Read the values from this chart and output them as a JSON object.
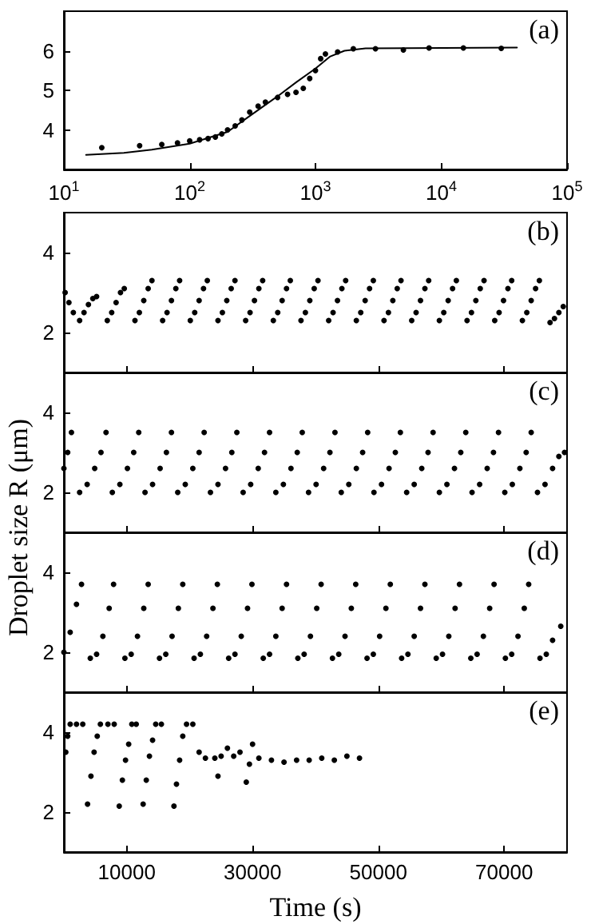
{
  "chart_data": [
    {
      "type": "scatter",
      "annotations": [
        "(a)"
      ],
      "xlim": [
        10,
        100000
      ],
      "log": "x",
      "xticks": [
        {
          "value": 10,
          "label": "10$^{1}$"
        },
        {
          "value": 100,
          "label": "10$^{2}$"
        },
        {
          "value": 1000,
          "label": "10$^{3}$"
        },
        {
          "value": 10000,
          "label": "10$^{4}$"
        },
        {
          "value": 100000,
          "label": "10$^{5}$"
        }
      ],
      "ylim": [
        3,
        7
      ],
      "yticks": [
        4,
        5,
        6
      ],
      "marker": "circle",
      "series": [
        {
          "color": "#000000",
          "x": [
            20,
            40,
            60,
            80,
            100,
            120,
            140,
            160,
            180,
            200,
            230,
            260,
            300,
            350,
            400,
            500,
            600,
            700,
            800,
            900,
            1000,
            1100,
            1200,
            1500,
            2000,
            3000,
            5000,
            8000,
            15000,
            30000
          ],
          "values": [
            3.55,
            3.6,
            3.63,
            3.67,
            3.72,
            3.75,
            3.78,
            3.82,
            3.9,
            4.0,
            4.1,
            4.25,
            4.45,
            4.6,
            4.7,
            4.82,
            4.9,
            4.95,
            5.05,
            5.3,
            5.5,
            5.8,
            5.92,
            5.97,
            6.05,
            6.05,
            6.02,
            6.07,
            6.07,
            6.06
          ]
        },
        {
          "type": "line",
          "marker": "none",
          "color": "#000000",
          "x": [
            15,
            30,
            50,
            100,
            200,
            300,
            500,
            700,
            1000,
            1300,
            1700,
            2500,
            40000
          ],
          "values": [
            3.37,
            3.42,
            3.5,
            3.65,
            3.95,
            4.35,
            4.85,
            5.2,
            5.55,
            5.85,
            6.0,
            6.06,
            6.08
          ]
        }
      ]
    },
    {
      "type": "scatter",
      "annotations": [
        "(b)"
      ],
      "xlim": [
        0,
        80000
      ],
      "xticks": [
        10000,
        30000,
        50000,
        70000
      ],
      "ylim": [
        1,
        5
      ],
      "yticks": [
        2,
        4
      ],
      "tick_labels": "y",
      "marker": "circle",
      "color": "#000000",
      "x": [
        200,
        800,
        1500,
        2500,
        3200,
        3900,
        4600,
        5200,
        6900,
        7600,
        8300,
        9000,
        9600,
        11300,
        12000,
        12700,
        13400,
        14000,
        15700,
        16400,
        17100,
        17800,
        18400,
        20100,
        20800,
        21500,
        22200,
        22800,
        24500,
        25200,
        25900,
        26600,
        27200,
        28900,
        29600,
        30300,
        31000,
        31600,
        33300,
        34000,
        34700,
        35400,
        36000,
        37700,
        38400,
        39100,
        39800,
        40400,
        42100,
        42800,
        43500,
        44200,
        44800,
        46500,
        47200,
        47900,
        48600,
        49200,
        50900,
        51600,
        52300,
        53000,
        53600,
        55300,
        56000,
        56700,
        57400,
        58000,
        59700,
        60400,
        61100,
        61800,
        62400,
        64100,
        64800,
        65500,
        66200,
        66800,
        68500,
        69200,
        69900,
        70600,
        71200,
        72900,
        73600,
        74300,
        75000,
        75600,
        77300,
        78000,
        78700,
        79400
      ],
      "values": [
        3.0,
        2.75,
        2.5,
        2.3,
        2.5,
        2.7,
        2.85,
        2.9,
        2.3,
        2.5,
        2.75,
        3.0,
        3.1,
        2.3,
        2.5,
        2.8,
        3.1,
        3.3,
        2.3,
        2.5,
        2.8,
        3.1,
        3.3,
        2.3,
        2.5,
        2.8,
        3.1,
        3.3,
        2.3,
        2.5,
        2.8,
        3.1,
        3.3,
        2.3,
        2.5,
        2.8,
        3.1,
        3.3,
        2.3,
        2.5,
        2.8,
        3.1,
        3.3,
        2.3,
        2.5,
        2.8,
        3.1,
        3.3,
        2.3,
        2.5,
        2.8,
        3.1,
        3.3,
        2.3,
        2.5,
        2.8,
        3.1,
        3.3,
        2.3,
        2.5,
        2.8,
        3.1,
        3.3,
        2.3,
        2.5,
        2.8,
        3.1,
        3.3,
        2.3,
        2.5,
        2.8,
        3.1,
        3.3,
        2.3,
        2.5,
        2.8,
        3.1,
        3.3,
        2.3,
        2.5,
        2.8,
        3.1,
        3.3,
        2.3,
        2.5,
        2.8,
        3.1,
        3.3,
        2.25,
        2.35,
        2.5,
        2.65
      ]
    },
    {
      "type": "scatter",
      "annotations": [
        "(c)"
      ],
      "ylabel": "Droplet size R (μm)",
      "xlim": [
        0,
        80000
      ],
      "xticks": [
        10000,
        30000,
        50000,
        70000
      ],
      "ylim": [
        1,
        5
      ],
      "yticks": [
        2,
        4
      ],
      "tick_labels": "y",
      "marker": "circle",
      "color": "#000000",
      "x": [
        0,
        600,
        1200,
        2500,
        3700,
        4900,
        5900,
        6700,
        7700,
        8900,
        10100,
        11100,
        11900,
        12900,
        14100,
        15300,
        16300,
        17100,
        18100,
        19300,
        20500,
        21500,
        22300,
        23300,
        24500,
        25700,
        26700,
        27500,
        28500,
        29700,
        30900,
        31900,
        32700,
        33700,
        34900,
        36100,
        37100,
        37900,
        38900,
        40100,
        41300,
        42300,
        43100,
        44100,
        45300,
        46500,
        47500,
        48300,
        49300,
        50500,
        51700,
        52700,
        53500,
        54500,
        55700,
        56900,
        57900,
        58700,
        59700,
        60900,
        62100,
        63100,
        63900,
        64900,
        66100,
        67300,
        68300,
        69100,
        70100,
        71300,
        72500,
        73500,
        74300,
        75300,
        76500,
        77700,
        78700,
        79600
      ],
      "values": [
        2.6,
        3.0,
        3.5,
        2.0,
        2.2,
        2.6,
        3.0,
        3.5,
        2.0,
        2.2,
        2.6,
        3.0,
        3.5,
        2.0,
        2.2,
        2.6,
        3.0,
        3.5,
        2.0,
        2.2,
        2.6,
        3.0,
        3.5,
        2.0,
        2.2,
        2.6,
        3.0,
        3.5,
        2.0,
        2.2,
        2.6,
        3.0,
        3.5,
        2.0,
        2.2,
        2.6,
        3.0,
        3.5,
        2.0,
        2.2,
        2.6,
        3.0,
        3.5,
        2.0,
        2.2,
        2.6,
        3.0,
        3.5,
        2.0,
        2.2,
        2.6,
        3.0,
        3.5,
        2.0,
        2.2,
        2.6,
        3.0,
        3.5,
        2.0,
        2.2,
        2.6,
        3.0,
        3.5,
        2.0,
        2.2,
        2.6,
        3.0,
        3.5,
        2.0,
        2.2,
        2.6,
        3.0,
        3.5,
        2.0,
        2.2,
        2.6,
        2.9,
        3.0
      ]
    },
    {
      "type": "scatter",
      "annotations": [
        "(d)"
      ],
      "xlim": [
        0,
        80000
      ],
      "xticks": [
        10000,
        30000,
        50000,
        70000
      ],
      "ylim": [
        1,
        5
      ],
      "yticks": [
        2,
        4
      ],
      "tick_labels": "y",
      "marker": "circle",
      "color": "#000000",
      "x": [
        0,
        1000,
        2000,
        2800,
        4200,
        5200,
        6200,
        7200,
        7900,
        9700,
        10700,
        11700,
        12700,
        13400,
        15200,
        16200,
        17200,
        18200,
        18900,
        20700,
        21700,
        22700,
        23700,
        24400,
        26200,
        27200,
        28200,
        29200,
        29900,
        31700,
        32700,
        33700,
        34700,
        35400,
        37200,
        38200,
        39200,
        40200,
        40900,
        42700,
        43700,
        44700,
        45700,
        46400,
        48200,
        49200,
        50200,
        51200,
        51900,
        53700,
        54700,
        55700,
        56700,
        57400,
        59200,
        60200,
        61200,
        62200,
        62900,
        64700,
        65700,
        66700,
        67700,
        68400,
        70200,
        71200,
        72200,
        73200,
        73900,
        75700,
        76700,
        77700,
        79000
      ],
      "values": [
        2.0,
        2.5,
        3.2,
        3.7,
        1.85,
        1.95,
        2.4,
        3.1,
        3.7,
        1.85,
        1.95,
        2.4,
        3.1,
        3.7,
        1.85,
        1.95,
        2.4,
        3.1,
        3.7,
        1.85,
        1.95,
        2.4,
        3.1,
        3.7,
        1.85,
        1.95,
        2.4,
        3.1,
        3.7,
        1.85,
        1.95,
        2.4,
        3.1,
        3.7,
        1.85,
        1.95,
        2.4,
        3.1,
        3.7,
        1.85,
        1.95,
        2.4,
        3.1,
        3.7,
        1.85,
        1.95,
        2.4,
        3.1,
        3.7,
        1.85,
        1.95,
        2.4,
        3.1,
        3.7,
        1.85,
        1.95,
        2.4,
        3.1,
        3.7,
        1.85,
        1.95,
        2.4,
        3.1,
        3.7,
        1.85,
        1.95,
        2.4,
        3.1,
        3.7,
        1.85,
        1.95,
        2.3,
        2.65
      ]
    },
    {
      "type": "scatter",
      "annotations": [
        "(e)"
      ],
      "xlabel": "Time (s)",
      "xlim": [
        0,
        80000
      ],
      "xticks": [
        10000,
        30000,
        50000,
        70000
      ],
      "ylim": [
        1,
        5
      ],
      "yticks": [
        2,
        4
      ],
      "marker": "circle",
      "color": "#000000",
      "x": [
        300,
        600,
        1000,
        2000,
        3000,
        3760,
        4300,
        4800,
        5300,
        5800,
        7000,
        8000,
        8800,
        9300,
        9800,
        10300,
        10800,
        11500,
        12600,
        13100,
        13600,
        14100,
        14600,
        15500,
        17500,
        17900,
        18400,
        18900,
        19500,
        20500,
        21500,
        22500,
        24000,
        24500,
        25000,
        26000,
        27000,
        28000,
        29000,
        29500,
        30000,
        31000,
        33000,
        35000,
        37000,
        39000,
        41000,
        43000,
        45000,
        47000
      ],
      "values": [
        3.5,
        3.9,
        4.2,
        4.2,
        4.2,
        2.2,
        2.9,
        3.5,
        3.9,
        4.2,
        4.2,
        4.2,
        2.15,
        2.8,
        3.3,
        3.7,
        4.2,
        4.2,
        2.2,
        2.8,
        3.4,
        3.8,
        4.2,
        4.2,
        2.15,
        2.7,
        3.3,
        3.9,
        4.2,
        4.2,
        3.5,
        3.35,
        3.35,
        2.9,
        3.4,
        3.6,
        3.4,
        3.5,
        2.75,
        3.2,
        3.7,
        3.35,
        3.3,
        3.25,
        3.3,
        3.3,
        3.35,
        3.3,
        3.4,
        3.35
      ]
    }
  ]
}
